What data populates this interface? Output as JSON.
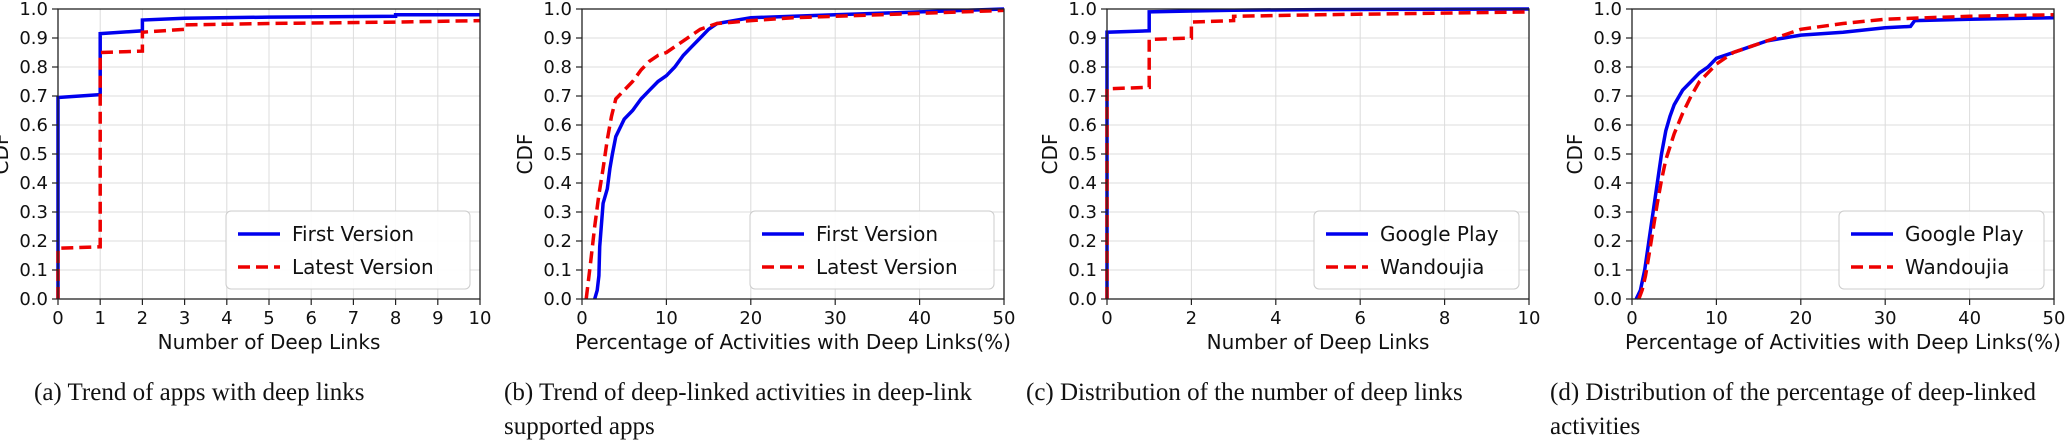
{
  "panels": [
    {
      "caption": "(a)  Trend of apps with deep links"
    },
    {
      "caption": "(b)  Trend of deep-linked activities in deep-link supported apps"
    },
    {
      "caption": "(c)  Distribution of the number of deep links"
    },
    {
      "caption": "(d)  Distribution of the percentage of deep-linked activities"
    }
  ],
  "chart_data": [
    {
      "type": "line",
      "xlabel": "Number of Deep Links",
      "ylabel": "CDF",
      "xlim": [
        0,
        10
      ],
      "ylim": [
        0,
        1.0
      ],
      "xticks": [
        0,
        1,
        2,
        3,
        4,
        5,
        6,
        7,
        8,
        9,
        10
      ],
      "yticks": [
        0.0,
        0.1,
        0.2,
        0.3,
        0.4,
        0.5,
        0.6,
        0.7,
        0.8,
        0.9,
        1.0
      ],
      "grid": true,
      "legend": "lower-right",
      "series": [
        {
          "name": "First Version",
          "color": "#0000ee",
          "style": "solid",
          "x": [
            0,
            0,
            1,
            1,
            2,
            2,
            3,
            5,
            8,
            8,
            10
          ],
          "y": [
            0.0,
            0.695,
            0.705,
            0.915,
            0.925,
            0.962,
            0.968,
            0.972,
            0.975,
            0.98,
            0.98
          ]
        },
        {
          "name": "Latest Version",
          "color": "#ee0000",
          "style": "dashed",
          "x": [
            0,
            0,
            1,
            1,
            2,
            2,
            3,
            3,
            5,
            8,
            10
          ],
          "y": [
            0.0,
            0.175,
            0.18,
            0.85,
            0.855,
            0.92,
            0.93,
            0.945,
            0.95,
            0.955,
            0.96
          ]
        }
      ]
    },
    {
      "type": "line",
      "xlabel": "Percentage of Activities with Deep Links(%)",
      "ylabel": "CDF",
      "xlim": [
        0,
        50
      ],
      "ylim": [
        0,
        1.0
      ],
      "xticks": [
        0,
        10,
        20,
        30,
        40,
        50
      ],
      "yticks": [
        0.0,
        0.1,
        0.2,
        0.3,
        0.4,
        0.5,
        0.6,
        0.7,
        0.8,
        0.9,
        1.0
      ],
      "grid": true,
      "legend": "lower-right",
      "series": [
        {
          "name": "First Version",
          "color": "#0000ee",
          "style": "solid",
          "x": [
            1.5,
            1.8,
            2.0,
            2.1,
            2.5,
            3.0,
            3.3,
            3.6,
            4.0,
            5.0,
            6.0,
            7.0,
            8.0,
            9.0,
            10.0,
            11.0,
            12.0,
            13.0,
            14.0,
            15.0,
            16.0,
            18.0,
            20.0,
            25.0,
            30.0,
            40.0,
            50.0
          ],
          "y": [
            0.0,
            0.03,
            0.08,
            0.18,
            0.33,
            0.38,
            0.45,
            0.5,
            0.56,
            0.62,
            0.65,
            0.69,
            0.72,
            0.75,
            0.77,
            0.8,
            0.84,
            0.87,
            0.9,
            0.93,
            0.95,
            0.96,
            0.97,
            0.975,
            0.98,
            0.99,
            1.0
          ]
        },
        {
          "name": "Latest Version",
          "color": "#ee0000",
          "style": "dashed",
          "x": [
            0.5,
            1.0,
            1.5,
            2.0,
            2.5,
            3.0,
            3.5,
            4.0,
            5.0,
            6.0,
            7.0,
            8.0,
            9.0,
            10.0,
            11.0,
            12.0,
            13.0,
            14.0,
            15.0,
            16.0,
            18.0,
            20.0,
            25.0,
            30.0,
            40.0,
            50.0
          ],
          "y": [
            0.0,
            0.12,
            0.25,
            0.36,
            0.45,
            0.55,
            0.63,
            0.69,
            0.72,
            0.75,
            0.79,
            0.82,
            0.84,
            0.85,
            0.87,
            0.89,
            0.91,
            0.93,
            0.94,
            0.95,
            0.955,
            0.96,
            0.97,
            0.975,
            0.985,
            0.995
          ]
        }
      ]
    },
    {
      "type": "line",
      "xlabel": "Number of Deep Links",
      "ylabel": "CDF",
      "xlim": [
        0,
        10
      ],
      "ylim": [
        0,
        1.0
      ],
      "xticks": [
        0,
        2,
        4,
        6,
        8,
        10
      ],
      "yticks": [
        0.0,
        0.1,
        0.2,
        0.3,
        0.4,
        0.5,
        0.6,
        0.7,
        0.8,
        0.9,
        1.0
      ],
      "grid": true,
      "legend": "lower-right",
      "series": [
        {
          "name": "Google Play",
          "color": "#0000ee",
          "style": "solid",
          "x": [
            0,
            0,
            1,
            1,
            2,
            3,
            5,
            10
          ],
          "y": [
            0.0,
            0.92,
            0.925,
            0.99,
            0.993,
            0.996,
            0.998,
            1.0
          ]
        },
        {
          "name": "Wandoujia",
          "color": "#ee0000",
          "style": "dashed",
          "x": [
            0,
            0,
            1,
            1,
            2,
            2,
            3,
            3,
            5,
            10
          ],
          "y": [
            0.0,
            0.725,
            0.73,
            0.895,
            0.9,
            0.955,
            0.96,
            0.975,
            0.98,
            0.99
          ]
        }
      ]
    },
    {
      "type": "line",
      "xlabel": "Percentage of Activities with Deep Links(%)",
      "ylabel": "CDF",
      "xlim": [
        0,
        50
      ],
      "ylim": [
        0,
        1.0
      ],
      "xticks": [
        0,
        10,
        20,
        30,
        40,
        50
      ],
      "yticks": [
        0.0,
        0.1,
        0.2,
        0.3,
        0.4,
        0.5,
        0.6,
        0.7,
        0.8,
        0.9,
        1.0
      ],
      "grid": true,
      "legend": "lower-right",
      "series": [
        {
          "name": "Google Play",
          "color": "#0000ee",
          "style": "solid",
          "x": [
            0.5,
            1.0,
            1.5,
            2.0,
            2.5,
            3.0,
            3.5,
            4.0,
            4.5,
            5.0,
            6.0,
            7.0,
            8.0,
            9.0,
            10.0,
            12.0,
            14.0,
            16.0,
            18.0,
            20.0,
            25.0,
            30.0,
            33.0,
            33.5,
            40.0,
            50.0
          ],
          "y": [
            0.0,
            0.03,
            0.1,
            0.2,
            0.3,
            0.4,
            0.5,
            0.58,
            0.63,
            0.67,
            0.72,
            0.75,
            0.78,
            0.8,
            0.83,
            0.85,
            0.87,
            0.89,
            0.9,
            0.91,
            0.92,
            0.935,
            0.94,
            0.96,
            0.965,
            0.97
          ]
        },
        {
          "name": "Wandoujia",
          "color": "#ee0000",
          "style": "dashed",
          "x": [
            0.8,
            1.2,
            1.6,
            2.0,
            2.5,
            3.0,
            3.5,
            4.0,
            5.0,
            6.0,
            7.0,
            8.0,
            9.0,
            10.0,
            12.0,
            14.0,
            16.0,
            18.0,
            20.0,
            25.0,
            30.0,
            40.0,
            50.0
          ],
          "y": [
            0.0,
            0.03,
            0.08,
            0.15,
            0.24,
            0.33,
            0.41,
            0.48,
            0.57,
            0.64,
            0.7,
            0.75,
            0.78,
            0.81,
            0.85,
            0.87,
            0.89,
            0.91,
            0.93,
            0.95,
            0.965,
            0.975,
            0.98
          ]
        }
      ]
    }
  ]
}
